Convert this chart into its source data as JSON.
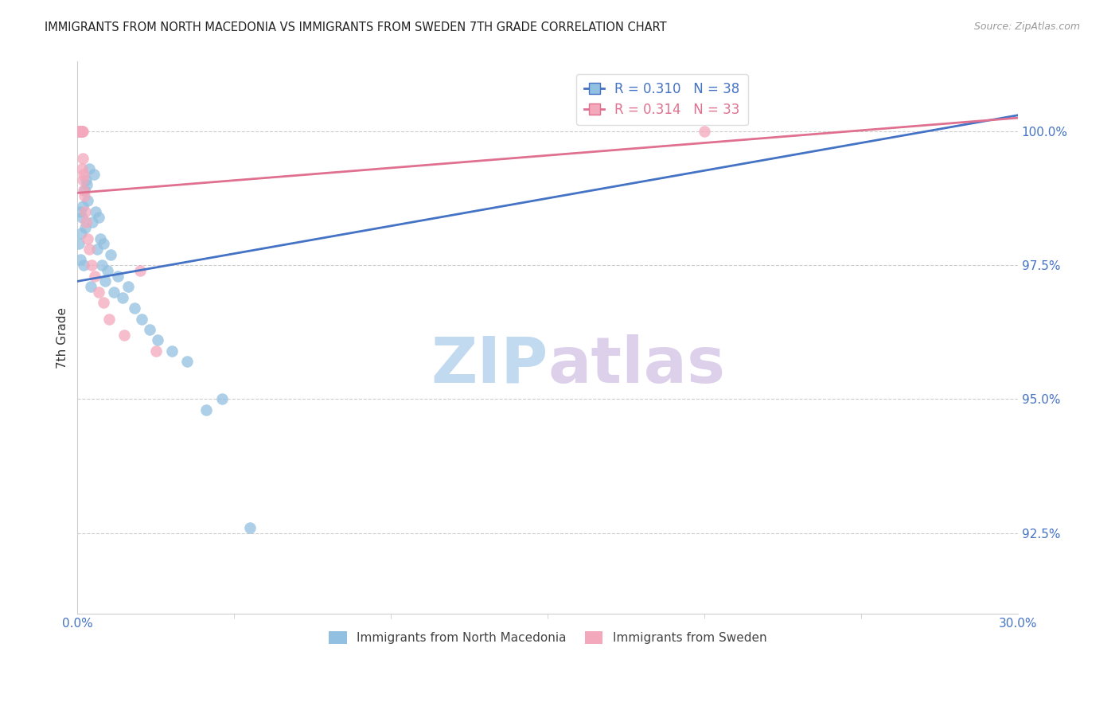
{
  "title": "IMMIGRANTS FROM NORTH MACEDONIA VS IMMIGRANTS FROM SWEDEN 7TH GRADE CORRELATION CHART",
  "source": "Source: ZipAtlas.com",
  "ylabel": "7th Grade",
  "ytick_vals": [
    92.5,
    95.0,
    97.5,
    100.0
  ],
  "ytick_labels": [
    "92.5%",
    "95.0%",
    "97.5%",
    "100.0%"
  ],
  "xlim": [
    0.0,
    30.0
  ],
  "ylim": [
    91.0,
    101.3
  ],
  "legend1_R": "0.310",
  "legend1_N": "38",
  "legend2_R": "0.314",
  "legend2_N": "33",
  "blue_color": "#92c0e0",
  "pink_color": "#f4a8bb",
  "blue_line_color": "#4472c4",
  "pink_line_color": "#e07090",
  "blue_line_x0": 0.0,
  "blue_line_y0": 97.2,
  "blue_line_x1": 30.0,
  "blue_line_y1": 100.3,
  "pink_line_x0": 0.0,
  "pink_line_y0": 98.85,
  "pink_line_x1": 30.0,
  "pink_line_y1": 100.25,
  "blue_x": [
    0.05,
    0.08,
    0.1,
    0.13,
    0.15,
    0.17,
    0.2,
    0.22,
    0.25,
    0.28,
    0.3,
    0.33,
    0.37,
    0.42,
    0.47,
    0.52,
    0.57,
    0.62,
    0.68,
    0.73,
    0.78,
    0.83,
    0.88,
    0.95,
    1.05,
    1.15,
    1.28,
    1.45,
    1.62,
    1.82,
    2.05,
    2.3,
    2.55,
    3.0,
    3.5,
    4.1,
    4.6,
    5.5
  ],
  "blue_y": [
    97.9,
    98.5,
    97.6,
    98.1,
    98.4,
    98.6,
    97.5,
    98.9,
    98.2,
    99.1,
    99.0,
    98.7,
    99.3,
    97.1,
    98.3,
    99.2,
    98.5,
    97.8,
    98.4,
    98.0,
    97.5,
    97.9,
    97.2,
    97.4,
    97.7,
    97.0,
    97.3,
    96.9,
    97.1,
    96.7,
    96.5,
    96.3,
    96.1,
    95.9,
    95.7,
    94.8,
    95.0,
    92.6
  ],
  "pink_x": [
    0.03,
    0.05,
    0.06,
    0.07,
    0.08,
    0.09,
    0.1,
    0.1,
    0.11,
    0.12,
    0.13,
    0.14,
    0.15,
    0.15,
    0.16,
    0.17,
    0.18,
    0.19,
    0.2,
    0.22,
    0.25,
    0.28,
    0.32,
    0.38,
    0.45,
    0.55,
    0.68,
    0.82,
    1.0,
    1.5,
    2.0,
    2.5,
    20.0
  ],
  "pink_y": [
    100.0,
    100.0,
    100.0,
    100.0,
    100.0,
    100.0,
    100.0,
    100.0,
    100.0,
    100.0,
    100.0,
    100.0,
    100.0,
    99.3,
    100.0,
    99.1,
    99.5,
    98.9,
    99.2,
    98.8,
    98.5,
    98.3,
    98.0,
    97.8,
    97.5,
    97.3,
    97.0,
    96.8,
    96.5,
    96.2,
    97.4,
    95.9,
    100.0
  ],
  "watermark_zip": "ZIP",
  "watermark_atlas": "atlas",
  "background_color": "#ffffff"
}
